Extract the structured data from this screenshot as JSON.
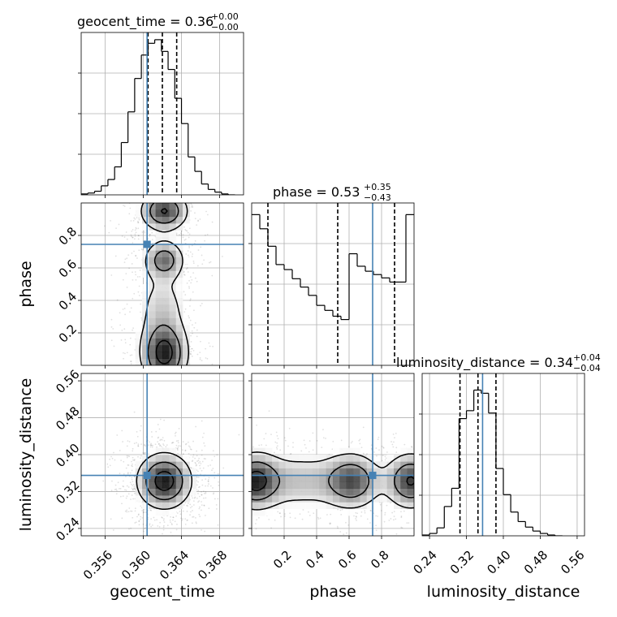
{
  "colors": {
    "truth": "#4682b4",
    "line": "#000000",
    "grid": "#b0b0b0",
    "scatter": "#000000"
  },
  "chart_data": {
    "type": "corner",
    "parameters": [
      "geocent_time",
      "phase",
      "luminosity_distance"
    ],
    "truths": {
      "geocent_time": 0.3604,
      "phase": 0.745,
      "luminosity_distance": 0.355
    },
    "ranges": {
      "geocent_time": [
        0.3535,
        0.3705
      ],
      "phase": [
        0.0,
        1.0
      ],
      "luminosity_distance": [
        0.224,
        0.576
      ]
    },
    "ticks": {
      "geocent_time": [
        0.356,
        0.36,
        0.364,
        0.368
      ],
      "phase": [
        0.2,
        0.4,
        0.6,
        0.8
      ],
      "luminosity_distance": [
        0.24,
        0.32,
        0.4,
        0.48,
        0.56
      ]
    },
    "tick_labels": {
      "geocent_time": [
        "0.356",
        "0.360",
        "0.364",
        "0.368"
      ],
      "phase": [
        "0.2",
        "0.4",
        "0.6",
        "0.8"
      ],
      "luminosity_distance": [
        "0.24",
        "0.32",
        "0.40",
        "0.48",
        "0.56"
      ]
    },
    "titles": {
      "geocent_time": {
        "text": "geocent_time = 0.36",
        "plus": "+0.00",
        "minus": "−0.00"
      },
      "phase": {
        "text": "phase = 0.53",
        "plus": "+0.35",
        "minus": "−0.43"
      },
      "luminosity_distance": {
        "text": "luminosity_distance = 0.34",
        "plus": "+0.04",
        "minus": "−0.04"
      }
    },
    "quantiles": {
      "geocent_time": [
        0.3605,
        0.362,
        0.3635
      ],
      "phase": [
        0.1,
        0.53,
        0.88
      ],
      "luminosity_distance": [
        0.306,
        0.345,
        0.384
      ]
    },
    "histograms": {
      "geocent_time": {
        "edges": [
          0.3535,
          0.3542,
          0.3549,
          0.3556,
          0.3563,
          0.357,
          0.3577,
          0.3584,
          0.3591,
          0.3598,
          0.3605,
          0.3612,
          0.3619,
          0.3626,
          0.3633,
          0.364,
          0.3647,
          0.3654,
          0.3661,
          0.3668,
          0.3675,
          0.3682,
          0.3689,
          0.3696
        ],
        "counts": [
          1,
          2,
          4,
          10,
          17,
          31,
          58,
          92,
          129,
          155,
          168,
          172,
          159,
          139,
          107,
          79,
          42,
          26,
          12,
          6,
          3,
          1,
          0
        ],
        "max": 180
      },
      "phase": {
        "edges": [
          0.0,
          0.05,
          0.1,
          0.15,
          0.2,
          0.25,
          0.3,
          0.35,
          0.4,
          0.45,
          0.5,
          0.55,
          0.6,
          0.65,
          0.7,
          0.75,
          0.8,
          0.85,
          0.9,
          0.95,
          1.0
        ],
        "counts": [
          181,
          164,
          143,
          121,
          115,
          104,
          94,
          84,
          72,
          66,
          59,
          55,
          134,
          119,
          113,
          109,
          105,
          100,
          100,
          181
        ],
        "max": 195
      },
      "luminosity_distance": {
        "edges": [
          0.224,
          0.24,
          0.256,
          0.272,
          0.288,
          0.304,
          0.32,
          0.336,
          0.352,
          0.368,
          0.384,
          0.4,
          0.416,
          0.432,
          0.448,
          0.464,
          0.48,
          0.496,
          0.512,
          0.528
        ],
        "counts": [
          1,
          3,
          10,
          37,
          60,
          148,
          158,
          184,
          180,
          155,
          85,
          52,
          30,
          18,
          11,
          6,
          3,
          1,
          0
        ],
        "max": 205
      }
    },
    "density": {
      "phase_vs_geocent_time": {
        "x": "geocent_time",
        "y": "phase",
        "modes": [
          {
            "x": 0.3622,
            "y": 0.95,
            "sx": 0.0014,
            "sy": 0.07,
            "w": 1.0
          },
          {
            "x": 0.3622,
            "y": 0.65,
            "sx": 0.0012,
            "sy": 0.07,
            "w": 0.75
          },
          {
            "x": 0.3622,
            "y": 0.07,
            "sx": 0.0014,
            "sy": 0.11,
            "w": 1.1
          },
          {
            "x": 0.362,
            "y": 0.35,
            "sx": 0.0016,
            "sy": 0.15,
            "w": 0.35
          }
        ],
        "contour_levels": [
          0.2,
          0.5,
          0.85
        ]
      },
      "luminosity_distance_vs_geocent_time": {
        "x": "geocent_time",
        "y": "luminosity_distance",
        "modes": [
          {
            "x": 0.3622,
            "y": 0.343,
            "sx": 0.0016,
            "sy": 0.034,
            "w": 1.0
          }
        ],
        "contour_levels": [
          0.2,
          0.5,
          0.85
        ]
      },
      "luminosity_distance_vs_phase": {
        "x": "phase",
        "y": "luminosity_distance",
        "modes": [
          {
            "x": 0.02,
            "y": 0.343,
            "sx": 0.09,
            "sy": 0.034,
            "w": 1.0
          },
          {
            "x": 0.62,
            "y": 0.343,
            "sx": 0.1,
            "sy": 0.034,
            "w": 0.85
          },
          {
            "x": 0.98,
            "y": 0.343,
            "sx": 0.09,
            "sy": 0.034,
            "w": 1.0
          },
          {
            "x": 0.3,
            "y": 0.343,
            "sx": 0.2,
            "sy": 0.038,
            "w": 0.4
          }
        ],
        "contour_levels": [
          0.2,
          0.5,
          0.85
        ]
      }
    },
    "grid": true
  }
}
